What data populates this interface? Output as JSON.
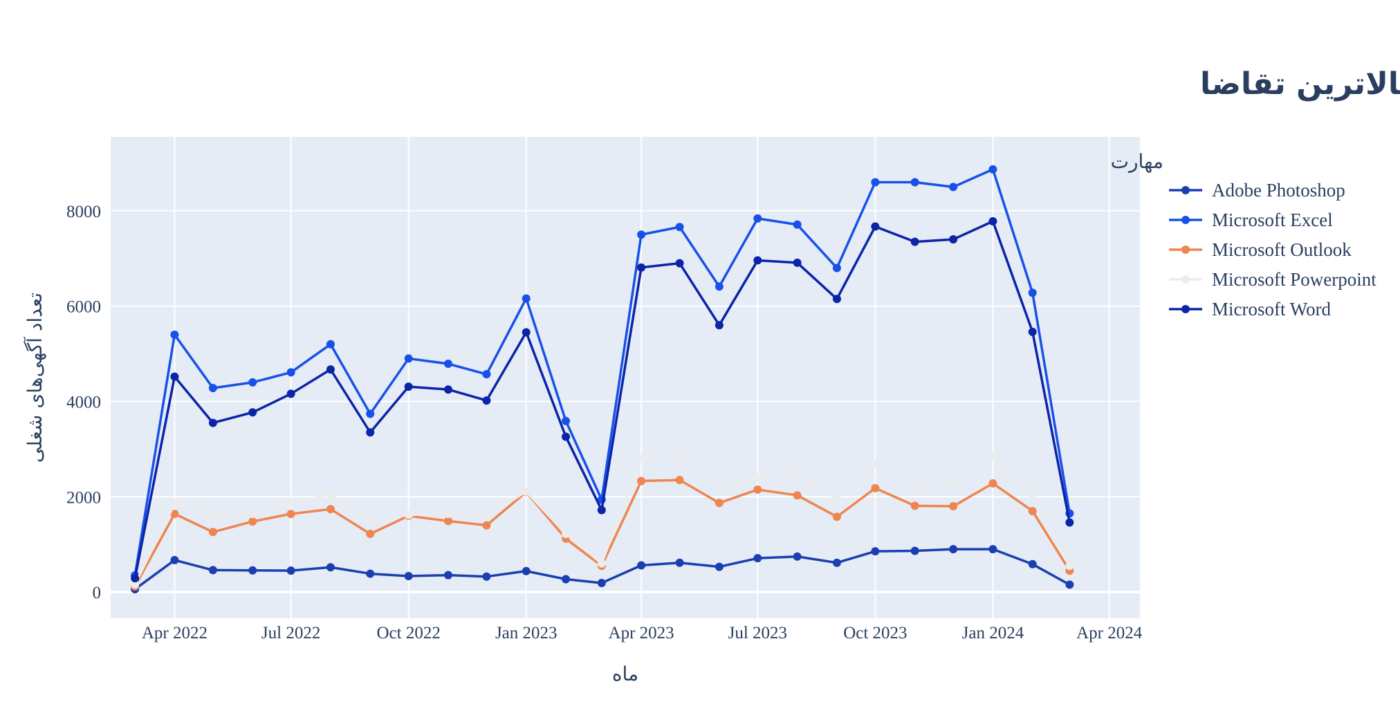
{
  "chart_data": {
    "type": "line",
    "title": "پنج مهارت با بالاترین تقاضا",
    "xlabel": "ماه",
    "ylabel": "تعداد آگهی‌های شغلی",
    "legend_title": "مهارت",
    "legend_position": "right",
    "grid": true,
    "x_range": [
      "2022-02-10",
      "2024-04-25"
    ],
    "ylim": [
      -550,
      9550
    ],
    "x_ticks": [
      {
        "date": "2022-04-01",
        "label": "Apr 2022"
      },
      {
        "date": "2022-07-01",
        "label": "Jul 2022"
      },
      {
        "date": "2022-10-01",
        "label": "Oct 2022"
      },
      {
        "date": "2023-01-01",
        "label": "Jan 2023"
      },
      {
        "date": "2023-04-01",
        "label": "Apr 2023"
      },
      {
        "date": "2023-07-01",
        "label": "Jul 2023"
      },
      {
        "date": "2023-10-01",
        "label": "Oct 2023"
      },
      {
        "date": "2024-01-01",
        "label": "Jan 2024"
      },
      {
        "date": "2024-04-01",
        "label": "Apr 2024"
      }
    ],
    "y_ticks": [
      0,
      2000,
      4000,
      6000,
      8000
    ],
    "x": [
      "2022-03-01",
      "2022-04-01",
      "2022-05-01",
      "2022-06-01",
      "2022-07-01",
      "2022-08-01",
      "2022-09-01",
      "2022-10-01",
      "2022-11-01",
      "2022-12-01",
      "2023-01-01",
      "2023-02-01",
      "2023-03-01",
      "2023-04-01",
      "2023-05-01",
      "2023-06-01",
      "2023-07-01",
      "2023-08-01",
      "2023-09-01",
      "2023-10-01",
      "2023-11-01",
      "2023-12-01",
      "2024-01-01",
      "2024-02-01",
      "2024-03-01"
    ],
    "series": [
      {
        "name": "Adobe Photoshop",
        "color": "#1a3fb0",
        "values": [
          60,
          670,
          460,
          455,
          450,
          520,
          385,
          335,
          355,
          325,
          440,
          270,
          190,
          560,
          615,
          530,
          710,
          745,
          615,
          855,
          865,
          900,
          900,
          585,
          155
        ]
      },
      {
        "name": "Microsoft Excel",
        "color": "#1751e8",
        "values": [
          350,
          5400,
          4280,
          4400,
          4610,
          5200,
          3740,
          4900,
          4790,
          4570,
          6160,
          3590,
          1940,
          7500,
          7660,
          6410,
          7840,
          7710,
          6800,
          8600,
          8600,
          8500,
          8870,
          6280,
          1650
        ]
      },
      {
        "name": "Microsoft Outlook",
        "color": "#ef8550",
        "values": [
          120,
          1640,
          1260,
          1480,
          1640,
          1740,
          1220,
          1600,
          1490,
          1400,
          2100,
          1120,
          550,
          2330,
          2350,
          1870,
          2150,
          2030,
          1580,
          2180,
          1810,
          1800,
          2280,
          1700,
          450
        ]
      },
      {
        "name": "Microsoft Powerpoint",
        "color": "#ececee",
        "values": [
          160,
          1850,
          1640,
          1640,
          1870,
          2050,
          1500,
          1620,
          1640,
          1580,
          2110,
          1220,
          600,
          2800,
          2800,
          2200,
          2400,
          2500,
          1950,
          2700,
          2200,
          2300,
          2850,
          2050,
          550
        ]
      },
      {
        "name": "Microsoft Word",
        "color": "#0b24a8",
        "values": [
          290,
          4520,
          3550,
          3770,
          4160,
          4670,
          3350,
          4310,
          4250,
          4020,
          5450,
          3260,
          1720,
          6810,
          6900,
          5600,
          6960,
          6910,
          6150,
          7670,
          7350,
          7400,
          7780,
          5460,
          1460
        ]
      }
    ]
  }
}
